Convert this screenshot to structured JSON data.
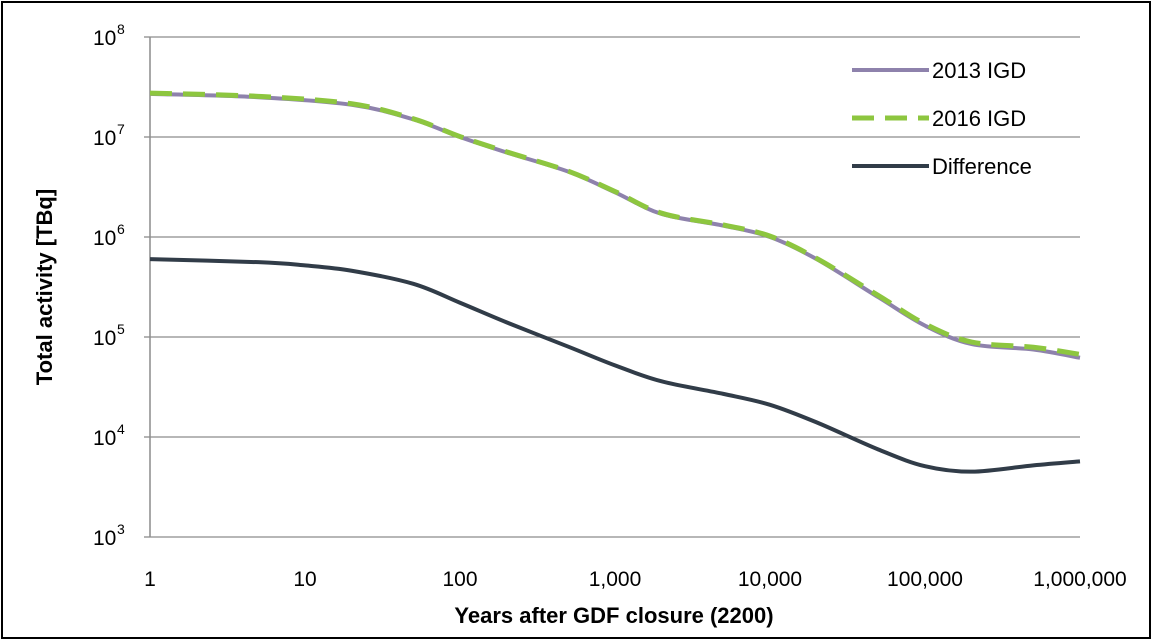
{
  "chart_data": {
    "type": "line",
    "xlabel": "Years after GDF closure (2200)",
    "ylabel": "Total activity [TBq]",
    "xscale": "log",
    "yscale": "log",
    "xlim": [
      1,
      1000000
    ],
    "ylim": [
      1000,
      100000000
    ],
    "x_ticks": [
      "1",
      "10",
      "100",
      "1,000",
      "10,000",
      "100,000",
      "1,000,000"
    ],
    "y_ticks": [
      {
        "base": "10",
        "exp": "3"
      },
      {
        "base": "10",
        "exp": "4"
      },
      {
        "base": "10",
        "exp": "5"
      },
      {
        "base": "10",
        "exp": "6"
      },
      {
        "base": "10",
        "exp": "7"
      },
      {
        "base": "10",
        "exp": "8"
      }
    ],
    "grid": "horizontal",
    "legend_position": "top-right",
    "series": [
      {
        "name": "2013 IGD",
        "color": "#8e82ac",
        "style": "solid",
        "x": [
          1,
          5,
          20,
          50,
          100,
          200,
          500,
          1000,
          2000,
          5000,
          10000,
          20000,
          50000,
          100000,
          200000,
          500000,
          1000000
        ],
        "y": [
          27000000,
          25000000,
          21000000,
          15000000,
          10000000,
          7000000,
          4500000,
          2800000,
          1700000,
          1300000,
          1000000,
          600000,
          250000,
          130000,
          85000,
          75000,
          62000
        ]
      },
      {
        "name": "2016 IGD",
        "color": "#8dc63f",
        "style": "dashed",
        "x": [
          1,
          5,
          20,
          50,
          100,
          200,
          500,
          1000,
          2000,
          5000,
          10000,
          20000,
          50000,
          100000,
          200000,
          500000,
          1000000
        ],
        "y": [
          27500000,
          25500000,
          21500000,
          15200000,
          10100000,
          7100000,
          4550000,
          2850000,
          1730000,
          1320000,
          1020000,
          610000,
          260000,
          135000,
          89000,
          79000,
          67000
        ]
      },
      {
        "name": "Difference",
        "color": "#313c48",
        "style": "solid",
        "x": [
          1,
          5,
          10,
          20,
          50,
          100,
          200,
          500,
          1000,
          2000,
          5000,
          10000,
          20000,
          50000,
          100000,
          200000,
          500000,
          1000000
        ],
        "y": [
          600000,
          560000,
          520000,
          460000,
          340000,
          220000,
          140000,
          80000,
          52000,
          36000,
          27000,
          21000,
          14000,
          7500,
          5100,
          4500,
          5200,
          5700
        ]
      }
    ]
  }
}
